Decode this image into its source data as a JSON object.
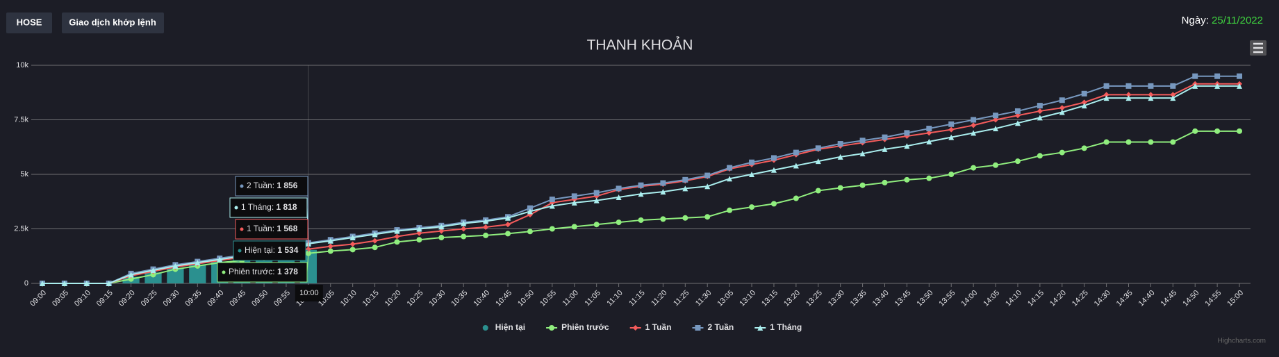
{
  "header": {
    "buttons": [
      "HOSE",
      "Giao dịch khớp lệnh"
    ],
    "date_label": "Ngày: ",
    "date": "25/11/2022"
  },
  "credit": "Highcharts.com",
  "chart_data": {
    "type": "line",
    "title": "THANH KHOẢN",
    "categories": [
      "09:00",
      "09:05",
      "09:10",
      "09:15",
      "09:20",
      "09:25",
      "09:30",
      "09:35",
      "09:40",
      "09:45",
      "09:50",
      "09:55",
      "10:00",
      "10:05",
      "10:10",
      "10:15",
      "10:20",
      "10:25",
      "10:30",
      "10:35",
      "10:40",
      "10:45",
      "10:50",
      "10:55",
      "11:00",
      "11:05",
      "11:10",
      "11:15",
      "11:20",
      "11:25",
      "11:30",
      "13:05",
      "13:10",
      "13:15",
      "13:20",
      "13:25",
      "13:30",
      "13:35",
      "13:40",
      "13:45",
      "13:50",
      "13:55",
      "14:00",
      "14:05",
      "14:10",
      "14:15",
      "14:20",
      "14:25",
      "14:30",
      "14:35",
      "14:40",
      "14:45",
      "14:50",
      "14:55",
      "15:00"
    ],
    "ylim": [
      0,
      10000
    ],
    "yticks": [
      0,
      {
        "value": 2500,
        "label": "2.5k"
      },
      {
        "value": 5000,
        "label": "5k"
      },
      {
        "value": 7500,
        "label": "7.5k"
      },
      {
        "value": 10000,
        "label": "10k"
      }
    ],
    "grid": true,
    "legend": "bottom",
    "series": [
      {
        "name": "Hiện tại",
        "type": "bar",
        "marker": "circle",
        "color": "#2b908f",
        "values": [
          0,
          0,
          0,
          0,
          300,
          500,
          700,
          850,
          1000,
          1100,
          1250,
          1400,
          1534,
          null,
          null,
          null,
          null,
          null,
          null,
          null,
          null,
          null,
          null,
          null,
          null,
          null,
          null,
          null,
          null,
          null,
          null,
          null,
          null,
          null,
          null,
          null,
          null,
          null,
          null,
          null,
          null,
          null,
          null,
          null,
          null,
          null,
          null,
          null,
          null,
          null,
          null,
          null,
          null,
          null,
          null
        ]
      },
      {
        "name": "Phiên trước",
        "type": "line",
        "marker": "circle",
        "color": "#90ee7e",
        "values": [
          0,
          0,
          0,
          0,
          200,
          400,
          650,
          800,
          950,
          1050,
          1150,
          1250,
          1378,
          1480,
          1550,
          1650,
          1900,
          2000,
          2100,
          2150,
          2200,
          2280,
          2380,
          2500,
          2600,
          2700,
          2800,
          2900,
          2950,
          3000,
          3050,
          3350,
          3500,
          3650,
          3900,
          4250,
          4380,
          4500,
          4620,
          4750,
          4820,
          5000,
          5300,
          5420,
          5600,
          5850,
          6000,
          6200,
          6480,
          6480,
          6480,
          6480,
          6980,
          6980,
          6980
        ]
      },
      {
        "name": "1 Tuần",
        "type": "line",
        "marker": "diamond",
        "color": "#f45b5b",
        "values": [
          0,
          0,
          0,
          0,
          350,
          550,
          750,
          900,
          1050,
          1200,
          1300,
          1450,
          1568,
          1700,
          1800,
          1950,
          2150,
          2300,
          2400,
          2500,
          2580,
          2700,
          3150,
          3700,
          3850,
          4000,
          4300,
          4450,
          4550,
          4700,
          4900,
          5250,
          5450,
          5650,
          5900,
          6150,
          6300,
          6450,
          6600,
          6750,
          6900,
          7050,
          7250,
          7500,
          7700,
          7900,
          8050,
          8300,
          8650,
          8650,
          8650,
          8650,
          9150,
          9150,
          9150
        ]
      },
      {
        "name": "2 Tuần",
        "type": "line",
        "marker": "square",
        "color": "#7798bf",
        "values": [
          0,
          0,
          0,
          0,
          450,
          650,
          850,
          1000,
          1150,
          1300,
          1450,
          1650,
          1856,
          2000,
          2150,
          2300,
          2450,
          2550,
          2650,
          2800,
          2900,
          3050,
          3450,
          3850,
          4000,
          4150,
          4350,
          4500,
          4600,
          4750,
          4950,
          5300,
          5550,
          5750,
          6000,
          6200,
          6400,
          6550,
          6700,
          6900,
          7100,
          7300,
          7500,
          7700,
          7900,
          8150,
          8400,
          8700,
          9050,
          9050,
          9050,
          9050,
          9500,
          9500,
          9500
        ]
      },
      {
        "name": "1 Tháng",
        "type": "line",
        "marker": "triangle",
        "color": "#aaeeee",
        "values": [
          0,
          0,
          0,
          0,
          400,
          600,
          800,
          950,
          1100,
          1250,
          1400,
          1600,
          1818,
          1950,
          2100,
          2250,
          2400,
          2500,
          2600,
          2750,
          2850,
          3000,
          3300,
          3550,
          3700,
          3800,
          3950,
          4100,
          4200,
          4350,
          4450,
          4800,
          5000,
          5200,
          5400,
          5600,
          5800,
          5950,
          6150,
          6300,
          6500,
          6700,
          6900,
          7100,
          7350,
          7600,
          7850,
          8150,
          8500,
          8500,
          8500,
          8500,
          9050,
          9050,
          9050
        ]
      }
    ],
    "tooltip": {
      "x": "10:00",
      "items": [
        {
          "series": "2 Tuần",
          "label": "1 856"
        },
        {
          "series": "1 Tháng",
          "label": "1 818"
        },
        {
          "series": "1 Tuần",
          "label": "1 568"
        },
        {
          "series": "Hiện tại",
          "label": "1 534"
        },
        {
          "series": "Phiên trước",
          "label": "1 378"
        }
      ]
    }
  }
}
